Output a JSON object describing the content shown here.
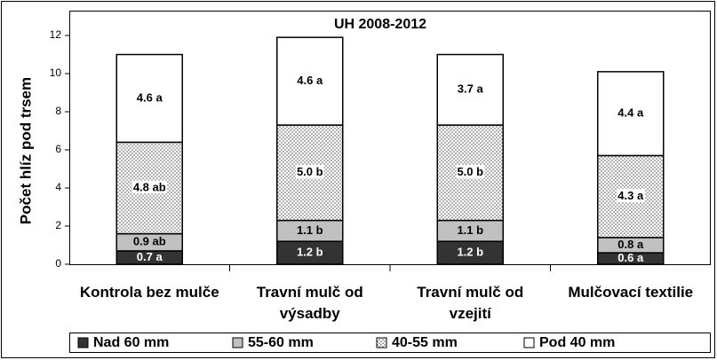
{
  "chart_data": {
    "type": "bar",
    "stacked": true,
    "title": "UH 2008-2012",
    "y_label": "Počet hlíz pod trsem",
    "categories": [
      "Kontrola bez mulče",
      "Travní mulč od výsadby",
      "Travní mulč od vzejití",
      "Mulčovací textilie"
    ],
    "series": [
      {
        "name": "Nad 60 mm",
        "color": "#333333",
        "values": [
          0.7,
          1.2,
          1.2,
          0.6
        ],
        "value_labels": [
          "0.7 a",
          "1.2 b",
          "1.2 b",
          "0.6 a"
        ]
      },
      {
        "name": "55-60 mm",
        "color": "#c0c0c0",
        "values": [
          0.9,
          1.1,
          1.1,
          0.8
        ],
        "value_labels": [
          "0.9 ab",
          "1.1 b",
          "1.1 b",
          "0.8 a"
        ]
      },
      {
        "name": "40-55 mm",
        "color": "#ffffff",
        "pattern": "dots",
        "values": [
          4.8,
          5.0,
          5.0,
          4.3
        ],
        "value_labels": [
          "4.8 ab",
          "5.0 b",
          "5.0 b",
          "4.3 a"
        ]
      },
      {
        "name": "Pod 40 mm",
        "color": "#ffffff",
        "values": [
          4.6,
          4.6,
          3.7,
          4.4
        ],
        "value_labels": [
          "4.6 a",
          "4.6 a",
          "3.7 a",
          "4.4 a"
        ]
      }
    ],
    "ylim": [
      0,
      12
    ],
    "yticks": [
      0,
      2,
      4,
      6,
      8,
      10,
      12
    ],
    "grid": false,
    "legend": "bottom"
  }
}
